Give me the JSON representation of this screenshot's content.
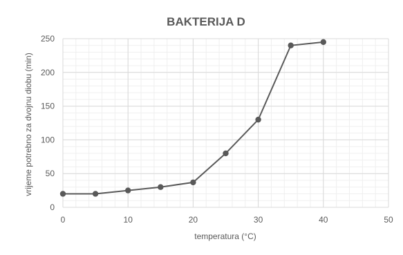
{
  "chart_data": {
    "type": "line",
    "title": "BAKTERIJA  D",
    "xlabel": "temperatura (°C)",
    "ylabel": "vrijeme potrebno za dvojnu diobu (min)",
    "xlim": [
      0,
      50
    ],
    "ylim": [
      0,
      250
    ],
    "x_ticks": [
      0,
      10,
      20,
      30,
      40,
      50
    ],
    "y_ticks": [
      0,
      50,
      100,
      150,
      200,
      250
    ],
    "grid": true,
    "legend": "none",
    "colors": {
      "line": "#595959",
      "marker": "#595959",
      "grid_major": "#d9d9d9",
      "grid_minor": "#efefef",
      "text": "#595959"
    },
    "series": [
      {
        "x": [
          0,
          5,
          10,
          15,
          20,
          25,
          30,
          35,
          40
        ],
        "y": [
          20,
          20,
          25,
          30,
          37,
          80,
          130,
          240,
          245
        ]
      }
    ]
  }
}
